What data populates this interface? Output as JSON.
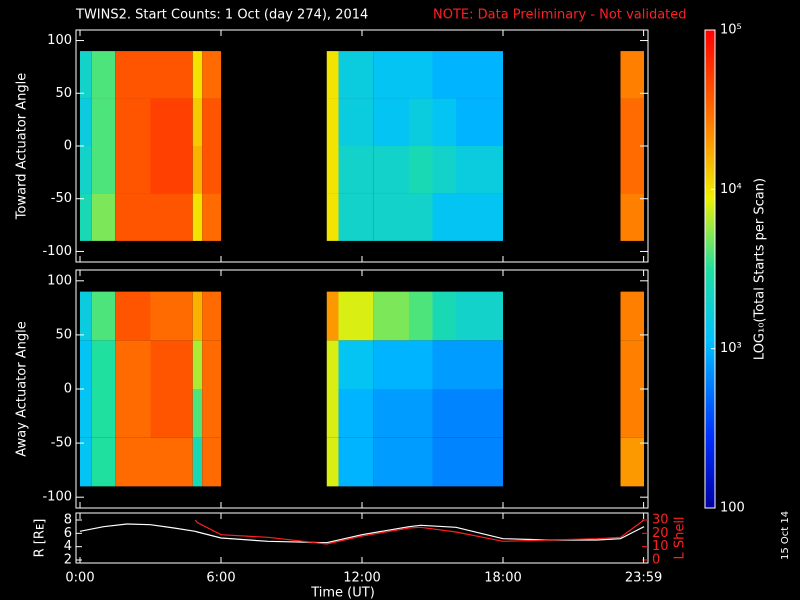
{
  "chart_data": [
    {
      "type": "heatmap",
      "title": "TWINS2. Start Counts:  1 Oct (day 274), 2014",
      "note": "NOTE: Data Preliminary - Not validated",
      "ylabel": "Toward Actuator Angle",
      "x_edges": [
        0,
        0.5,
        1.5,
        3,
        4.8,
        5.2,
        6,
        10.5,
        11,
        12.5,
        14,
        15,
        16,
        18,
        23,
        24
      ],
      "y_edges": [
        -90,
        -45,
        0,
        45,
        90
      ],
      "values": [
        [
          3.4,
          3.7,
          4.6,
          4.6,
          4.0,
          4.5,
          null,
          4.0,
          3.3,
          3.3,
          3.3,
          3.1,
          3.1,
          null,
          4.4
        ],
        [
          3.3,
          3.6,
          4.6,
          4.7,
          4.2,
          4.6,
          null,
          4.0,
          3.3,
          3.3,
          3.4,
          3.3,
          3.2,
          null,
          4.5
        ],
        [
          3.2,
          3.6,
          4.6,
          4.7,
          4.1,
          4.6,
          null,
          4.0,
          3.2,
          3.1,
          3.2,
          3.1,
          3.0,
          null,
          4.5
        ],
        [
          3.3,
          3.6,
          4.6,
          4.6,
          4.0,
          4.5,
          null,
          4.0,
          3.2,
          3.1,
          3.1,
          3.0,
          3.0,
          null,
          4.4
        ]
      ],
      "xlim": [
        0,
        24
      ],
      "ylim": [
        -110,
        110
      ],
      "yticks": [
        100,
        50,
        0,
        -50,
        -100
      ]
    },
    {
      "type": "heatmap",
      "ylabel": "Away Actuator Angle",
      "x_edges": [
        0,
        0.5,
        1.5,
        3,
        4.8,
        5.2,
        6,
        10.5,
        11,
        12.5,
        14,
        15,
        16,
        18,
        23,
        24
      ],
      "y_edges": [
        -90,
        -45,
        0,
        45,
        90
      ],
      "values": [
        [
          3.1,
          3.5,
          4.5,
          4.5,
          3.4,
          4.5,
          null,
          3.9,
          3.0,
          2.9,
          2.9,
          2.8,
          2.8,
          null,
          4.3
        ],
        [
          3.1,
          3.5,
          4.5,
          4.6,
          3.6,
          4.5,
          null,
          3.9,
          3.0,
          2.9,
          2.9,
          2.8,
          2.8,
          null,
          4.4
        ],
        [
          3.1,
          3.5,
          4.5,
          4.6,
          3.8,
          4.5,
          null,
          3.9,
          3.1,
          3.0,
          3.0,
          2.9,
          2.9,
          null,
          4.4
        ],
        [
          3.2,
          3.6,
          4.6,
          4.5,
          4.2,
          4.5,
          null,
          4.3,
          3.9,
          3.7,
          3.6,
          3.4,
          3.3,
          null,
          4.4
        ]
      ],
      "xlim": [
        0,
        24
      ],
      "ylim": [
        -110,
        110
      ],
      "yticks": [
        100,
        50,
        0,
        -50,
        -100
      ]
    },
    {
      "type": "line",
      "xlabel": "Time (UT)",
      "annotation": "15 Oct 14",
      "x": [
        0,
        1,
        2,
        3,
        4,
        4.9,
        5,
        6,
        8,
        10.5,
        12,
        14,
        14.5,
        16,
        18,
        20,
        22,
        23,
        24
      ],
      "series": [
        {
          "name": "R [Rᴇ]",
          "color": "#ffffff",
          "values": [
            6.3,
            7.0,
            7.4,
            7.3,
            6.8,
            6.3,
            6.2,
            5.3,
            4.8,
            4.6,
            5.8,
            7.0,
            7.2,
            6.9,
            5.2,
            5.0,
            5.0,
            5.2,
            7.0
          ]
        },
        {
          "name": "L Shell",
          "color": "#ff2020",
          "axis": "y2",
          "values": [
            null,
            null,
            null,
            null,
            null,
            30,
            28,
            19,
            17,
            12,
            18,
            24,
            24.5,
            21,
            14,
            15,
            16,
            17,
            30
          ]
        }
      ],
      "xlim": [
        0,
        24
      ],
      "xticks": [
        {
          "value": 0,
          "label": "0:00"
        },
        {
          "value": 6,
          "label": "6:00"
        },
        {
          "value": 12,
          "label": "12:00"
        },
        {
          "value": 18,
          "label": "18:00"
        },
        {
          "value": 23.983,
          "label": "23:59"
        }
      ],
      "ylim": [
        1.55,
        9.05
      ],
      "yticks": [
        2,
        4,
        6,
        8
      ],
      "y2lim": [
        -2.25,
        35.25
      ],
      "y2ticks": [
        0,
        10,
        20,
        30
      ]
    },
    {
      "type": "colorbar",
      "label": "LOG₁₀(Total Starts per Scan)",
      "lim": [
        2,
        5
      ],
      "ticks": [
        {
          "value": 5,
          "label": "10⁵"
        },
        {
          "value": 4,
          "label": "10⁴"
        },
        {
          "value": 3,
          "label": "10³"
        },
        {
          "value": 2,
          "label": "100"
        }
      ]
    }
  ]
}
